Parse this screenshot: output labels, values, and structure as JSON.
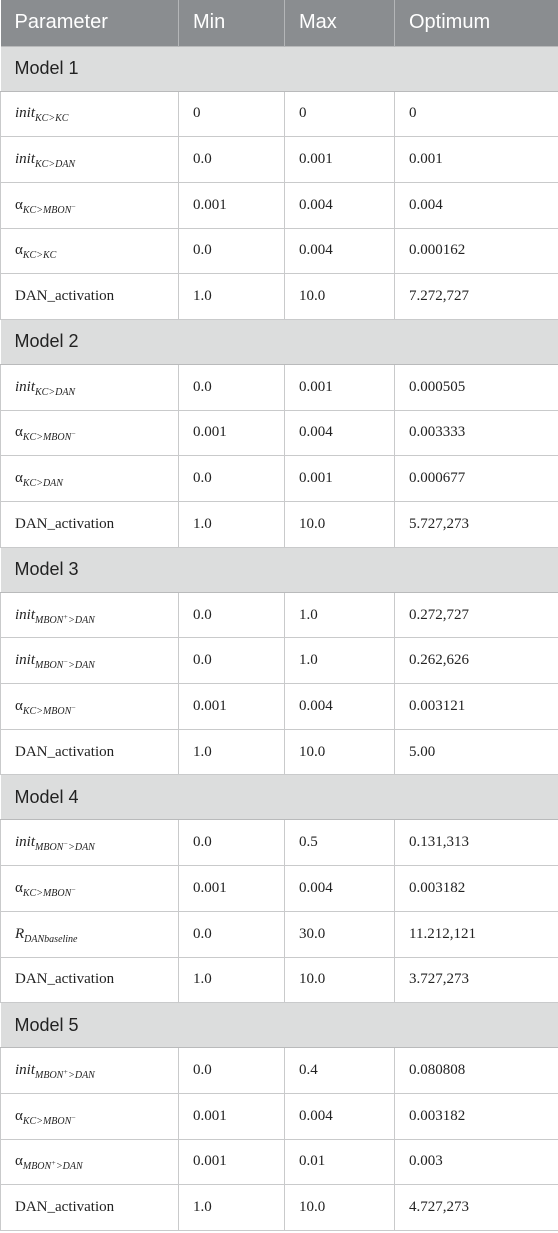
{
  "header": {
    "parameter": "Parameter",
    "min": "Min",
    "max": "Max",
    "optimum": "Optimum"
  },
  "groups": [
    {
      "title": "Model 1",
      "rows": [
        {
          "base": "init",
          "italic": true,
          "sub": "KC>KC",
          "sup": "",
          "sub_tail": "",
          "min": "0",
          "max": "0",
          "opt": "0"
        },
        {
          "base": "init",
          "italic": true,
          "sub": "KC>DAN",
          "sup": "",
          "sub_tail": "",
          "min": "0.0",
          "max": "0.001",
          "opt": "0.001"
        },
        {
          "base": "α",
          "italic": false,
          "sub": "KC>MBON",
          "sup": "−",
          "sub_tail": "",
          "min": "0.001",
          "max": "0.004",
          "opt": "0.004"
        },
        {
          "base": "α",
          "italic": false,
          "sub": "KC>KC",
          "sup": "",
          "sub_tail": "",
          "min": "0.0",
          "max": "0.004",
          "opt": "0.000162"
        },
        {
          "base": "DAN_activation",
          "italic": false,
          "sub": "",
          "sup": "",
          "sub_tail": "",
          "min": "1.0",
          "max": "10.0",
          "opt": "7.272,727"
        }
      ]
    },
    {
      "title": "Model 2",
      "rows": [
        {
          "base": "init",
          "italic": true,
          "sub": "KC>DAN",
          "sup": "",
          "sub_tail": "",
          "min": "0.0",
          "max": "0.001",
          "opt": "0.000505"
        },
        {
          "base": "α",
          "italic": false,
          "sub": "KC>MBON",
          "sup": "−",
          "sub_tail": "",
          "min": "0.001",
          "max": "0.004",
          "opt": "0.003333"
        },
        {
          "base": "α",
          "italic": false,
          "sub": "KC>DAN",
          "sup": "",
          "sub_tail": "",
          "min": "0.0",
          "max": "0.001",
          "opt": "0.000677"
        },
        {
          "base": "DAN_activation",
          "italic": false,
          "sub": "",
          "sup": "",
          "sub_tail": "",
          "min": "1.0",
          "max": "10.0",
          "opt": "5.727,273"
        }
      ]
    },
    {
      "title": "Model 3",
      "rows": [
        {
          "base": "init",
          "italic": true,
          "sub": "MBON",
          "sup": "+",
          "sub_tail": ">DAN",
          "min": "0.0",
          "max": "1.0",
          "opt": "0.272,727"
        },
        {
          "base": "init",
          "italic": true,
          "sub": "MBON",
          "sup": "−",
          "sub_tail": ">DAN",
          "min": "0.0",
          "max": "1.0",
          "opt": "0.262,626"
        },
        {
          "base": "α",
          "italic": false,
          "sub": "KC>MBON",
          "sup": "−",
          "sub_tail": "",
          "min": "0.001",
          "max": "0.004",
          "opt": "0.003121"
        },
        {
          "base": "DAN_activation",
          "italic": false,
          "sub": "",
          "sup": "",
          "sub_tail": "",
          "min": "1.0",
          "max": "10.0",
          "opt": "5.00"
        }
      ]
    },
    {
      "title": "Model 4",
      "rows": [
        {
          "base": "init",
          "italic": true,
          "sub": "MBON",
          "sup": "−",
          "sub_tail": ">DAN",
          "min": "0.0",
          "max": "0.5",
          "opt": "0.131,313"
        },
        {
          "base": "α",
          "italic": false,
          "sub": "KC>MBON",
          "sup": "−",
          "sub_tail": "",
          "min": "0.001",
          "max": "0.004",
          "opt": "0.003182"
        },
        {
          "base": "R",
          "italic": true,
          "sub": "DANbaseline",
          "sup": "",
          "sub_tail": "",
          "min": "0.0",
          "max": "30.0",
          "opt": "11.212,121"
        },
        {
          "base": "DAN_activation",
          "italic": false,
          "sub": "",
          "sup": "",
          "sub_tail": "",
          "min": "1.0",
          "max": "10.0",
          "opt": "3.727,273"
        }
      ]
    },
    {
      "title": "Model 5",
      "rows": [
        {
          "base": "init",
          "italic": true,
          "sub": "MBON",
          "sup": "+",
          "sub_tail": ">DAN",
          "min": "0.0",
          "max": "0.4",
          "opt": "0.080808"
        },
        {
          "base": "α",
          "italic": false,
          "sub": "KC>MBON",
          "sup": "−",
          "sub_tail": "",
          "min": "0.001",
          "max": "0.004",
          "opt": "0.003182"
        },
        {
          "base": "α",
          "italic": false,
          "sub": "MBON",
          "sup": "+",
          "sub_tail": ">DAN",
          "min": "0.001",
          "max": "0.01",
          "opt": "0.003"
        },
        {
          "base": "DAN_activation",
          "italic": false,
          "sub": "",
          "sup": "",
          "sub_tail": "",
          "min": "1.0",
          "max": "10.0",
          "opt": "4.727,273"
        }
      ]
    }
  ]
}
